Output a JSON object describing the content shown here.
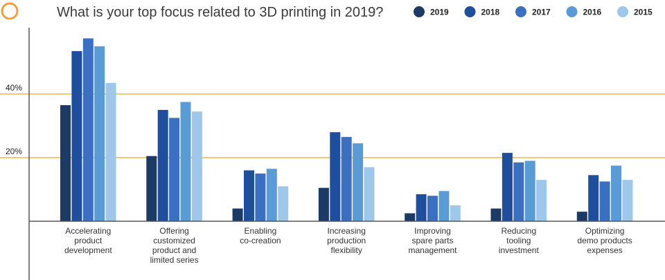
{
  "chart_data": {
    "type": "bar",
    "title": "What is your top focus related to 3D printing in 2019?",
    "xlabel": "",
    "ylabel": "",
    "ylim": [
      0,
      60
    ],
    "yticks": [
      {
        "value": 20,
        "label": "20%"
      },
      {
        "value": 40,
        "label": "40%"
      }
    ],
    "grid": "horizontal lines at labeled ticks",
    "legend": "top-right",
    "categories": [
      [
        "Accelerating",
        "product",
        "development"
      ],
      [
        "Offering",
        "customized",
        "product and",
        "limited series"
      ],
      [
        "Enabling",
        "co-creation"
      ],
      [
        "Increasing",
        "production",
        "flexibility"
      ],
      [
        "Improving",
        "spare parts",
        "management"
      ],
      [
        "Reducing",
        "tooling",
        "investment"
      ],
      [
        "Optimizing",
        "demo products",
        "expenses"
      ]
    ],
    "series": [
      {
        "name": "2019",
        "color": "#1c3a63",
        "values": [
          36.5,
          20.5,
          4.0,
          10.5,
          2.5,
          4.0,
          3.0
        ]
      },
      {
        "name": "2018",
        "color": "#1f4e9c",
        "values": [
          53.5,
          35.0,
          16.0,
          28.0,
          8.5,
          21.5,
          14.5
        ]
      },
      {
        "name": "2017",
        "color": "#3b6fbf",
        "values": [
          57.5,
          32.5,
          15.0,
          26.5,
          8.0,
          18.5,
          12.5
        ]
      },
      {
        "name": "2016",
        "color": "#5b9bd5",
        "values": [
          55.0,
          37.5,
          16.5,
          24.5,
          9.5,
          19.0,
          17.5
        ]
      },
      {
        "name": "2015",
        "color": "#9fc7ea",
        "values": [
          43.5,
          34.5,
          11.0,
          17.0,
          5.0,
          13.0,
          13.0
        ]
      }
    ]
  },
  "colors": {
    "title_ring": "#f0a040",
    "gridline": "#f2c77a",
    "axis": "#555555"
  }
}
